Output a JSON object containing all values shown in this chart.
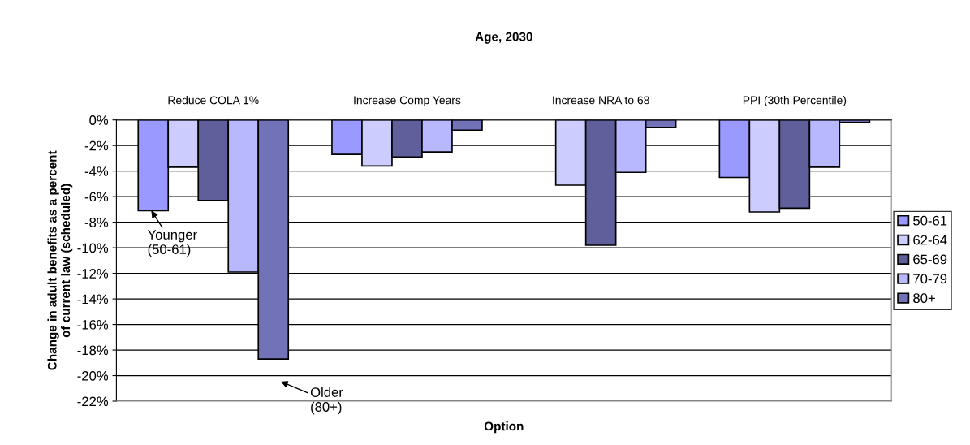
{
  "chart_data": {
    "type": "bar",
    "title": "Age, 2030",
    "xlabel": "Option",
    "ylabel": "Change in adult benefits as a percent\nof current law (scheduled)",
    "categories": [
      "Reduce COLA 1%",
      "Increase Comp Years",
      "Increase NRA to 68",
      "PPI (30th Percentile)"
    ],
    "series": [
      {
        "name": "50-61",
        "color": "#9999ff",
        "values": [
          -7.1,
          -2.7,
          null,
          -4.5
        ]
      },
      {
        "name": "62-64",
        "color": "#ccccff",
        "values": [
          -3.7,
          -3.6,
          -5.1,
          -7.2
        ]
      },
      {
        "name": "65-69",
        "color": "#5f5f9c",
        "values": [
          -6.3,
          -2.9,
          -9.8,
          -6.9
        ]
      },
      {
        "name": "70-79",
        "color": "#b8b8ff",
        "values": [
          -11.9,
          -2.5,
          -4.1,
          -3.7
        ]
      },
      {
        "name": "80+",
        "color": "#7272b8",
        "values": [
          -18.7,
          -0.8,
          -0.6,
          -0.2
        ]
      }
    ],
    "ylim": [
      -22,
      0
    ],
    "yticks": [
      {
        "value": 0,
        "label": "0%"
      },
      {
        "value": -2,
        "label": "-2%"
      },
      {
        "value": -4,
        "label": "-4%"
      },
      {
        "value": -6,
        "label": "-6%"
      },
      {
        "value": -8,
        "label": "-8%"
      },
      {
        "value": -10,
        "label": "-10%"
      },
      {
        "value": -12,
        "label": "-12%"
      },
      {
        "value": -14,
        "label": "-14%"
      },
      {
        "value": -16,
        "label": "-16%"
      },
      {
        "value": -18,
        "label": "-18%"
      },
      {
        "value": -20,
        "label": "-20%"
      },
      {
        "value": -22,
        "label": "-22%"
      }
    ],
    "grid": "y",
    "legend": "right",
    "annotations": [
      "Younger\n(50-61)",
      "Older\n(80+)"
    ]
  }
}
